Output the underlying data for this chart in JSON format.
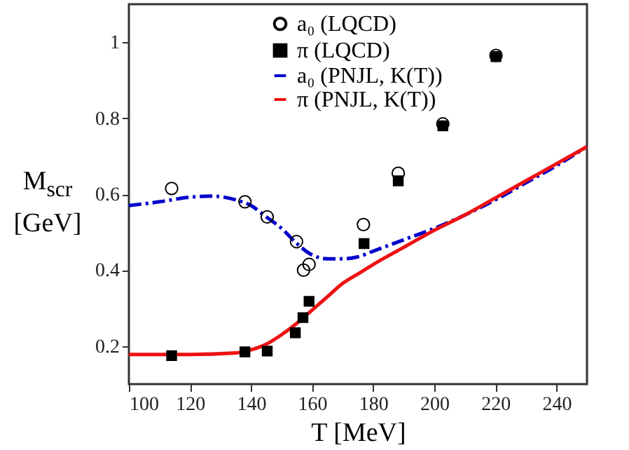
{
  "chart_data": {
    "type": "line",
    "xlabel": "T [MeV]",
    "ylabel": "M$_{scr}$ [GeV]",
    "xlim": [
      100,
      250
    ],
    "ylim": [
      0.1,
      1.1
    ],
    "xticks": [
      100,
      120,
      140,
      160,
      180,
      200,
      220,
      240
    ],
    "yticks": [
      0.2,
      0.4,
      0.6,
      0.8,
      1
    ],
    "grid": false,
    "legend": "top right",
    "series": [
      {
        "name": "a₀ (LQCD)",
        "type": "scatter",
        "marker": "circle",
        "color": "#000000",
        "x": [
          114,
          138,
          145.3,
          154.9,
          157.2,
          159,
          176.8,
          188.2,
          202.8,
          220.2
        ],
        "values": [
          0.615,
          0.58,
          0.54,
          0.475,
          0.4,
          0.415,
          0.52,
          0.655,
          0.785,
          0.965
        ]
      },
      {
        "name": "π (LQCD)",
        "type": "scatter",
        "marker": "square",
        "color": "#000000",
        "x": [
          114,
          138,
          145.3,
          154.5,
          157,
          159,
          177,
          188.2,
          202.8,
          220.2
        ],
        "values": [
          0.175,
          0.185,
          0.187,
          0.235,
          0.275,
          0.318,
          0.47,
          0.635,
          0.78,
          0.962
        ]
      },
      {
        "name": "a₀ (PNJL, K(T))",
        "type": "line",
        "line_style": "dashed",
        "color": "#0000cc",
        "x": [
          100,
          110,
          120,
          127,
          135,
          140,
          145,
          150,
          155,
          160,
          165,
          170,
          175,
          180,
          190,
          200,
          210,
          220,
          230,
          240,
          250
        ],
        "values": [
          0.57,
          0.58,
          0.592,
          0.595,
          0.585,
          0.57,
          0.54,
          0.51,
          0.47,
          0.44,
          0.43,
          0.43,
          0.435,
          0.45,
          0.48,
          0.51,
          0.545,
          0.585,
          0.63,
          0.675,
          0.725
        ]
      },
      {
        "name": "π (PNJL, K(T))",
        "type": "line",
        "line_style": "solid",
        "color": "#ee1111",
        "x": [
          100,
          120,
          135,
          140,
          145,
          150,
          155,
          160,
          165,
          170,
          175,
          180,
          190,
          200,
          210,
          220,
          230,
          240,
          250
        ],
        "values": [
          0.178,
          0.178,
          0.182,
          0.19,
          0.205,
          0.23,
          0.26,
          0.295,
          0.33,
          0.365,
          0.39,
          0.415,
          0.46,
          0.505,
          0.545,
          0.59,
          0.635,
          0.68,
          0.725
        ]
      }
    ]
  }
}
